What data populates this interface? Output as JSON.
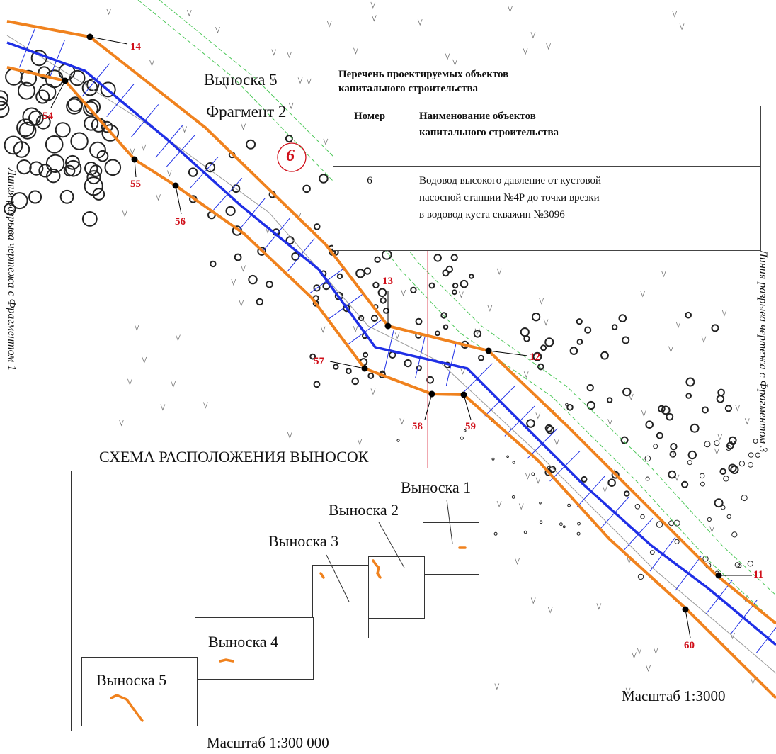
{
  "map": {
    "callout_label": "Выноска 5",
    "fragment_label": "Фрагмент 2",
    "object_marker": "6",
    "point_labels": {
      "p14": "14",
      "p54": "54",
      "p55": "55",
      "p56": "56",
      "p13": "13",
      "p57": "57",
      "p12": "12",
      "p58": "58",
      "p59": "59",
      "p11": "11",
      "p60": "60"
    },
    "break_line_left": "Линия разрыва чертежа с Фрагментом 1",
    "break_line_right": "Линия разрыва чертежа с Фрагментом 3",
    "scale": "Масштаб 1:3000",
    "colors": {
      "boundary": "#f0821e",
      "pipeline": "#1f2fe6",
      "labels": "#d0101a",
      "contour": "#4ec85a"
    }
  },
  "objects_table": {
    "title_line1": "Перечень проектируемых объектов",
    "title_line2": "капитального строительства",
    "header_number": "Номер",
    "header_name_line1": "Наименование объектов",
    "header_name_line2": "капитального строительства",
    "rows": [
      {
        "number": "6",
        "name_line1": "Водовод высокого давление от кустовой",
        "name_line2": "насосной станции №4Р до точки врезки",
        "name_line3": "в водовод куста скважин №3096"
      }
    ]
  },
  "callout_scheme": {
    "title": "СХЕМА РАСПОЛОЖЕНИЯ ВЫНОСОК",
    "callouts": [
      "Выноска 1",
      "Выноска 2",
      "Выноска 3",
      "Выноска 4",
      "Выноска 5"
    ],
    "scale": "Масштаб 1:300 000"
  }
}
